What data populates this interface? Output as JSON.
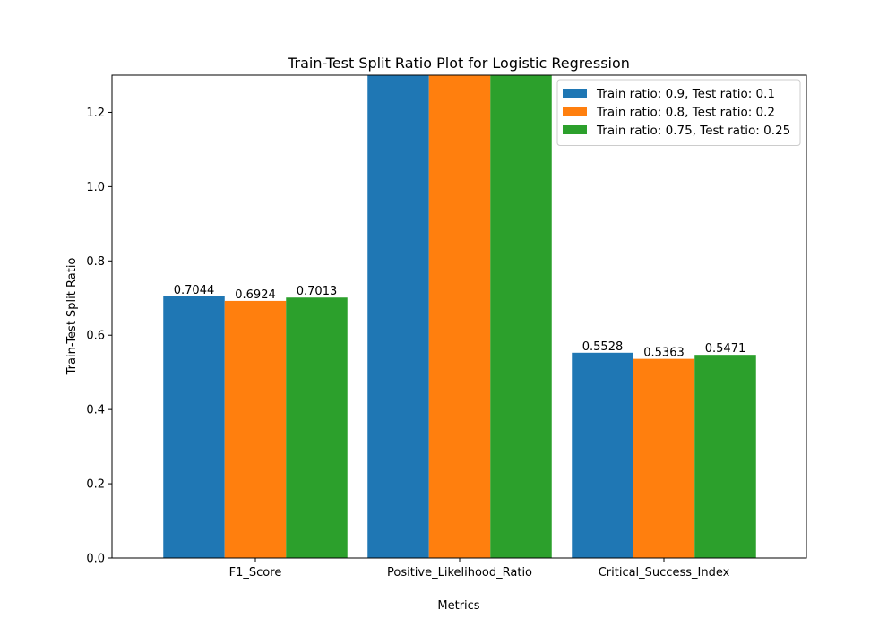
{
  "chart_data": {
    "type": "bar",
    "title": "Train-Test Split Ratio Plot for Logistic Regression",
    "xlabel": "Metrics",
    "ylabel": "Train-Test Split Ratio",
    "ylim": [
      0,
      1.3
    ],
    "yticks": [
      0.0,
      0.2,
      0.4,
      0.6,
      0.8,
      1.0,
      1.2
    ],
    "ytick_labels": [
      "0.0",
      "0.2",
      "0.4",
      "0.6",
      "0.8",
      "1.0",
      "1.2"
    ],
    "categories": [
      "F1_Score",
      "Positive_Likelihood_Ratio",
      "Critical_Success_Index"
    ],
    "legend_position": "top-right",
    "grid": false,
    "series": [
      {
        "name": "Train ratio: 0.9, Test ratio: 0.1",
        "color": "#1f77b4",
        "values": [
          0.7044,
          null,
          0.5528
        ],
        "labels": [
          "0.7044",
          "",
          "0.5528"
        ]
      },
      {
        "name": "Train ratio: 0.8, Test ratio: 0.2",
        "color": "#ff7f0e",
        "values": [
          0.6924,
          null,
          0.5363
        ],
        "labels": [
          "0.6924",
          "",
          "0.5363"
        ]
      },
      {
        "name": "Train ratio: 0.75, Test ratio: 0.25",
        "color": "#2ca02c",
        "values": [
          0.7013,
          null,
          0.5471
        ],
        "labels": [
          "0.7013",
          "",
          "0.5471"
        ]
      }
    ]
  }
}
